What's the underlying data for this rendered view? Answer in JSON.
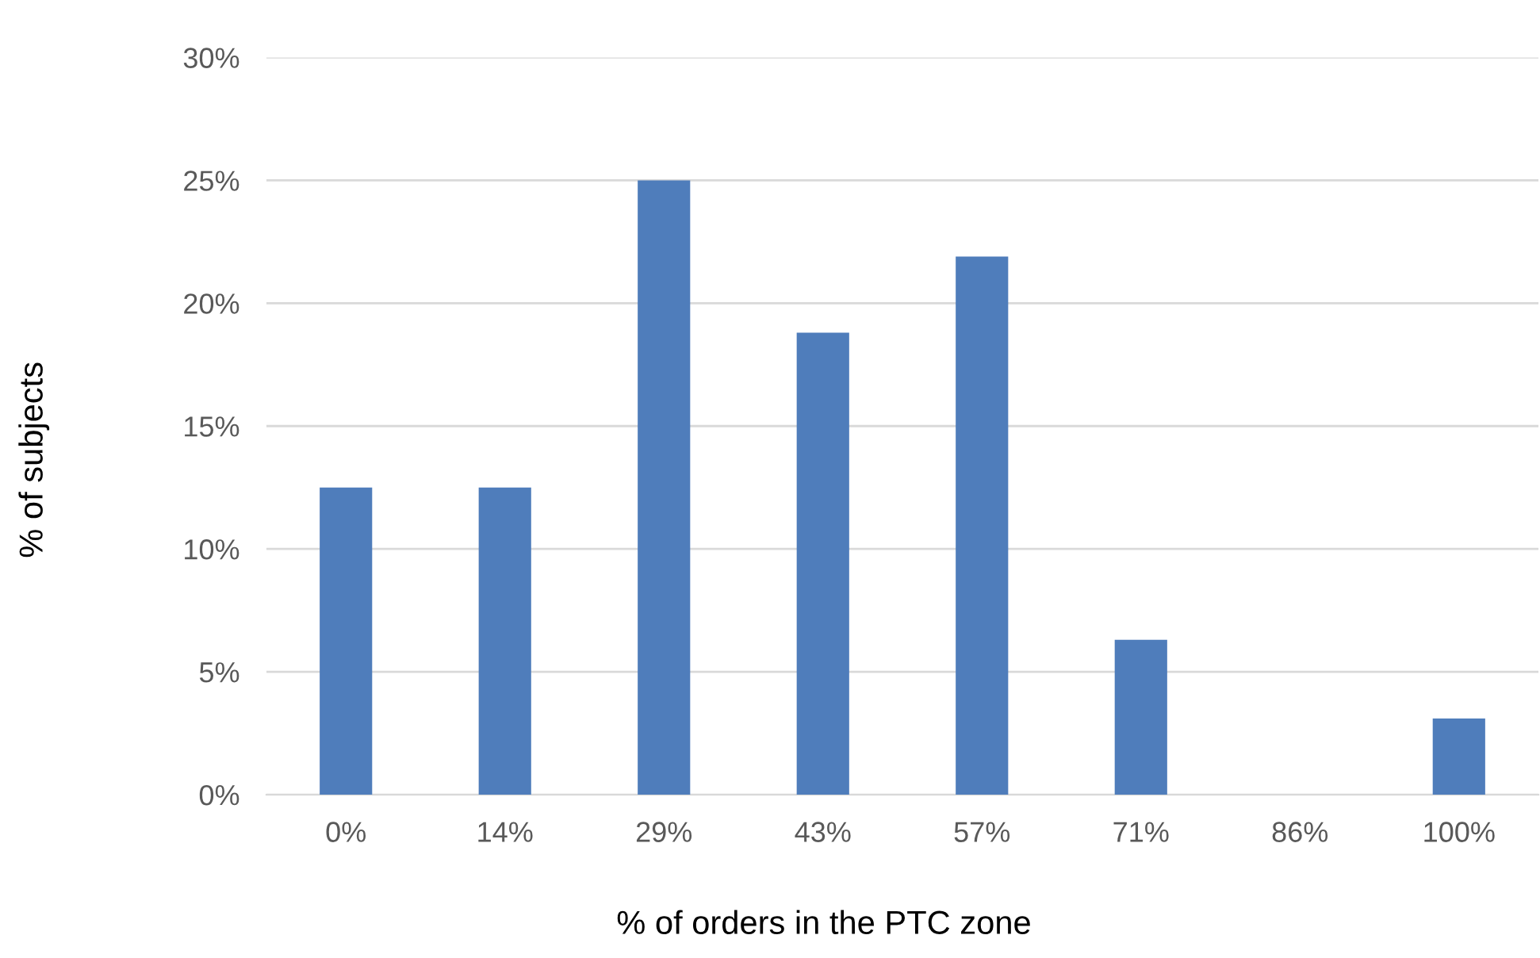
{
  "chart_data": {
    "type": "bar",
    "xlabel": "% of orders in the PTC zone",
    "ylabel": "% of subjects",
    "categories": [
      "0%",
      "14%",
      "29%",
      "43%",
      "57%",
      "71%",
      "86%",
      "100%"
    ],
    "values": [
      12.5,
      12.5,
      25,
      18.8,
      21.9,
      6.3,
      0,
      3.1
    ],
    "color": "#4f7dbb",
    "ylim": [
      0,
      30
    ],
    "yticks": [
      {
        "value": 0,
        "label": "0%"
      },
      {
        "value": 5,
        "label": "5%"
      },
      {
        "value": 10,
        "label": "10%"
      },
      {
        "value": 15,
        "label": "15%"
      },
      {
        "value": 20,
        "label": "20%"
      },
      {
        "value": 25,
        "label": "25%"
      },
      {
        "value": 30,
        "label": "30%"
      }
    ],
    "grid": "y",
    "legend": false
  }
}
